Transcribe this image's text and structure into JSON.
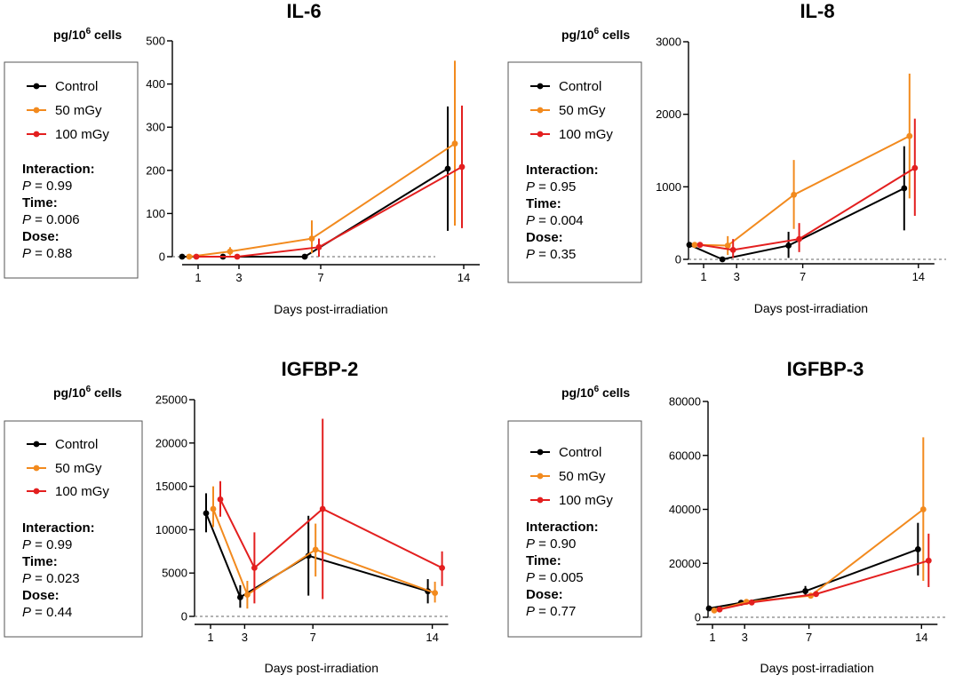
{
  "colors": {
    "Control": "#000000",
    "50 mGy": "#f28a1e",
    "100 mGy": "#e31f1f"
  },
  "chart_data": [
    {
      "type": "line",
      "title": "IL-6",
      "ylabel_pre": "pg/10",
      "ylabel_sup": "6",
      "ylabel_post": " cells",
      "xlabel": "Days post-irradiation",
      "x_ticks": [
        1,
        3,
        7,
        14
      ],
      "y_ticks": [
        "0",
        "100",
        "200",
        "300",
        "400",
        "500"
      ],
      "ylim": [
        0,
        500
      ],
      "legend": [
        "Control",
        "50 mGy",
        "100 mGy"
      ],
      "stats": [
        {
          "label": "Interaction:",
          "p_prefix": "P",
          "p_value": " = 0.99"
        },
        {
          "label": "Time:",
          "p_prefix": "P",
          "p_value": " = 0.006"
        },
        {
          "label": "Dose:",
          "p_prefix": "P",
          "p_value": " = 0.88"
        }
      ],
      "series": [
        {
          "name": "Control",
          "x": [
            1,
            3,
            7,
            14
          ],
          "y": [
            0,
            0,
            0,
            204
          ],
          "err_low": [
            0,
            0,
            0,
            60
          ],
          "err_high": [
            0,
            0,
            0,
            348
          ]
        },
        {
          "name": "50 mGy",
          "x": [
            1,
            3,
            7,
            14
          ],
          "y": [
            0,
            12,
            42,
            262
          ],
          "err_low": [
            0,
            3,
            8,
            72
          ],
          "err_high": [
            0,
            22,
            84,
            454
          ]
        },
        {
          "name": "100 mGy",
          "x": [
            1,
            3,
            7,
            14
          ],
          "y": [
            0,
            0,
            22,
            208
          ],
          "err_low": [
            0,
            0,
            0,
            66
          ],
          "err_high": [
            0,
            0,
            42,
            350
          ]
        }
      ]
    },
    {
      "type": "line",
      "title": "IL-8",
      "ylabel_pre": "pg/10",
      "ylabel_sup": "6",
      "ylabel_post": " cells",
      "xlabel": "Days post-irradiation",
      "x_ticks": [
        1,
        3,
        7,
        14
      ],
      "y_ticks": [
        "0",
        "1000",
        "2000",
        "3000"
      ],
      "ylim": [
        0,
        3000
      ],
      "legend": [
        "Control",
        "50 mGy",
        "100 mGy"
      ],
      "stats": [
        {
          "label": "Interaction:",
          "p_prefix": "P",
          "p_value": " = 0.95"
        },
        {
          "label": "Time:",
          "p_prefix": "P",
          "p_value": " = 0.004"
        },
        {
          "label": "Dose:",
          "p_prefix": "P",
          "p_value": " = 0.35"
        }
      ],
      "series": [
        {
          "name": "Control",
          "x": [
            1,
            3,
            7,
            14
          ],
          "y": [
            200,
            0,
            190,
            980
          ],
          "err_low": [
            200,
            0,
            20,
            400
          ],
          "err_high": [
            200,
            0,
            380,
            1560
          ]
        },
        {
          "name": "50 mGy",
          "x": [
            1,
            3,
            7,
            14
          ],
          "y": [
            200,
            190,
            890,
            1700
          ],
          "err_low": [
            200,
            60,
            420,
            840
          ],
          "err_high": [
            200,
            320,
            1370,
            2560
          ]
        },
        {
          "name": "100 mGy",
          "x": [
            1,
            3,
            7,
            14
          ],
          "y": [
            200,
            130,
            280,
            1260
          ],
          "err_low": [
            200,
            20,
            100,
            600
          ],
          "err_high": [
            200,
            280,
            500,
            1940
          ]
        }
      ]
    },
    {
      "type": "line",
      "title": "IGFBP-2",
      "ylabel_pre": "pg/10",
      "ylabel_sup": "6",
      "ylabel_post": " cells",
      "xlabel": "Days post-irradiation",
      "x_ticks": [
        1,
        3,
        7,
        14
      ],
      "y_ticks": [
        "0",
        "5000",
        "10000",
        "15000",
        "20000",
        "25000"
      ],
      "ylim": [
        0,
        25000
      ],
      "legend": [
        "Control",
        "50 mGy",
        "100 mGy"
      ],
      "stats": [
        {
          "label": "Interaction:",
          "p_prefix": "P",
          "p_value": " = 0.99"
        },
        {
          "label": "Time:",
          "p_prefix": "P",
          "p_value": " = 0.023"
        },
        {
          "label": "Dose:",
          "p_prefix": "P",
          "p_value": " = 0.44"
        }
      ],
      "series": [
        {
          "name": "Control",
          "x": [
            1,
            3,
            7,
            14
          ],
          "y": [
            11900,
            2200,
            7000,
            2900
          ],
          "err_low": [
            9700,
            1000,
            2400,
            1500
          ],
          "err_high": [
            14200,
            3600,
            11600,
            4300
          ]
        },
        {
          "name": "50 mGy",
          "x": [
            1,
            3,
            7,
            14
          ],
          "y": [
            12400,
            2500,
            7700,
            2700
          ],
          "err_low": [
            10300,
            900,
            4600,
            1600
          ],
          "err_high": [
            15000,
            4100,
            10700,
            4000
          ]
        },
        {
          "name": "100 mGy",
          "x": [
            1,
            3,
            7,
            14
          ],
          "y": [
            13500,
            5600,
            12400,
            5600
          ],
          "err_low": [
            11500,
            1500,
            2000,
            3500
          ],
          "err_high": [
            15600,
            9700,
            22800,
            7500
          ]
        }
      ]
    },
    {
      "type": "line",
      "title": "IGFBP-3",
      "ylabel_pre": "pg/10",
      "ylabel_sup": "6",
      "ylabel_post": " cells",
      "xlabel": "Days post-irradiation",
      "x_ticks": [
        1,
        3,
        7,
        14
      ],
      "y_ticks": [
        "0",
        "20000",
        "40000",
        "60000",
        "80000"
      ],
      "ylim": [
        0,
        80000
      ],
      "legend": [
        "Control",
        "50 mGy",
        "100 mGy"
      ],
      "stats": [
        {
          "label": "Interaction:",
          "p_prefix": "P",
          "p_value": " = 0.90"
        },
        {
          "label": "Time:",
          "p_prefix": "P",
          "p_value": " = 0.005"
        },
        {
          "label": "Dose:",
          "p_prefix": "P",
          "p_value": " = 0.77"
        }
      ],
      "series": [
        {
          "name": "Control",
          "x": [
            1,
            3,
            7,
            14
          ],
          "y": [
            3300,
            5400,
            9700,
            25200
          ],
          "err_low": [
            2500,
            4600,
            7800,
            15500
          ],
          "err_high": [
            4100,
            6200,
            11600,
            35000
          ]
        },
        {
          "name": "50 mGy",
          "x": [
            1,
            3,
            7,
            14
          ],
          "y": [
            2500,
            5700,
            8000,
            40000
          ],
          "err_low": [
            1800,
            5000,
            7000,
            13500
          ],
          "err_high": [
            3200,
            6400,
            9000,
            66700
          ]
        },
        {
          "name": "100 mGy",
          "x": [
            1,
            3,
            7,
            14
          ],
          "y": [
            2900,
            5500,
            8600,
            21000
          ],
          "err_low": [
            2200,
            4800,
            7600,
            11200
          ],
          "err_high": [
            3600,
            6200,
            9600,
            31000
          ]
        }
      ]
    }
  ]
}
